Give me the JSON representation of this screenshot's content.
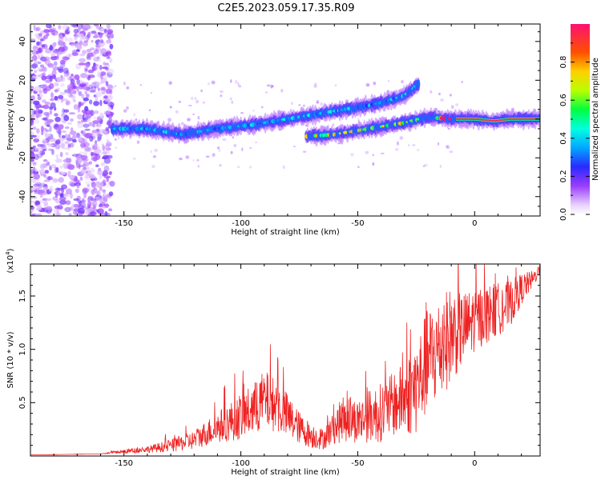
{
  "title": "C2E5.2023.059.17.35.R09",
  "chart_data": [
    {
      "type": "heatmap",
      "xlabel": "Height of straight line (km)",
      "ylabel": "Frequency (Hz)",
      "xlim": [
        -190,
        28
      ],
      "ylim": [
        -50,
        49
      ],
      "xticks": [
        -150,
        -100,
        -50,
        0
      ],
      "yticks": [
        -40,
        -20,
        0,
        20,
        40
      ],
      "colorbar": {
        "label": "Normalized spectral amplitude",
        "range": [
          0,
          1
        ],
        "ticks": [
          "0.0",
          "0.2",
          "0.4",
          "0.6",
          "0.8"
        ]
      },
      "tracks": [
        {
          "x": [
            -155,
            -140,
            -125,
            -110,
            -95,
            -80,
            -65,
            -55,
            -45,
            -38,
            -30,
            -24
          ],
          "y": [
            -5,
            -5,
            -8,
            -5,
            -3,
            0,
            3,
            5,
            7,
            9,
            12,
            18
          ],
          "amp": 0.35
        },
        {
          "x": [
            -72,
            -60,
            -50,
            -40,
            -30,
            -20,
            -10,
            0,
            8,
            15,
            28
          ],
          "y": [
            -9,
            -8,
            -6,
            -4,
            -2,
            1,
            0,
            0,
            -1,
            0,
            0
          ],
          "amp": 0.6
        }
      ]
    },
    {
      "type": "line",
      "xlabel": "Height of straight line (km)",
      "ylabel": "SNR (10 * v/v)",
      "yexponent": "(x10",
      "yexponent_power": "4",
      "yexponent_close": ")",
      "xlim": [
        -190,
        28
      ],
      "ylim": [
        0,
        18000
      ],
      "xticks": [
        -150,
        -100,
        -50,
        0
      ],
      "yticks": [
        {
          "value": 5000,
          "label": "0.5"
        },
        {
          "value": 10000,
          "label": "1.0"
        },
        {
          "value": 15000,
          "label": "1.5"
        }
      ],
      "color": "#ee2222",
      "baseline_points": {
        "x": [
          -190,
          -160,
          -150,
          -140,
          -130,
          -120,
          -115,
          -110,
          -105,
          -100,
          -95,
          -90,
          -85,
          -80,
          -75,
          -70,
          -65,
          -60,
          -55,
          -50,
          -45,
          -40,
          -35,
          -30,
          -25,
          -20,
          -15,
          -10,
          -5,
          0,
          5,
          10,
          15,
          20,
          25,
          28
        ],
        "y": [
          100,
          200,
          400,
          600,
          900,
          1400,
          2000,
          2500,
          3000,
          3500,
          4000,
          5000,
          4500,
          3500,
          2500,
          1800,
          1500,
          2500,
          3500,
          3000,
          3500,
          3800,
          4500,
          5000,
          6000,
          8500,
          9500,
          11000,
          11500,
          12500,
          13000,
          13500,
          14000,
          15500,
          16500,
          17500
        ]
      },
      "noise_amplitude": [
        0,
        0,
        200,
        300,
        600,
        900,
        1200,
        1500,
        1800,
        2200,
        2500,
        2800,
        2500,
        2200,
        1500,
        1200,
        1000,
        1500,
        2500,
        2000,
        2500,
        2800,
        3000,
        3500,
        4500,
        5000,
        5000,
        4500,
        3500,
        3000,
        2800,
        2500,
        2200,
        1500,
        800,
        500
      ]
    }
  ]
}
